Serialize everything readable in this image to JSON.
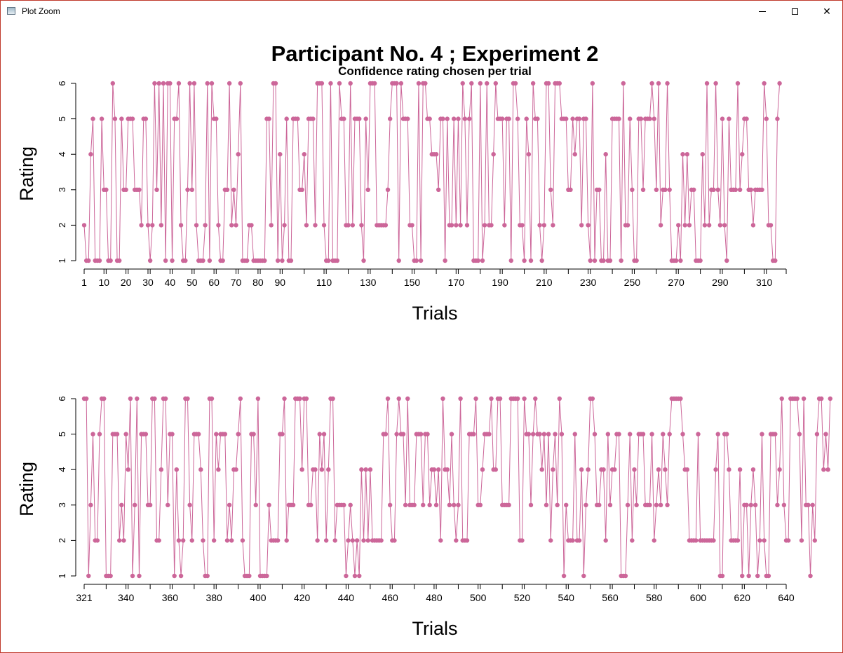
{
  "window": {
    "title": "Plot Zoom",
    "controls": {
      "minimize": "minimize",
      "maximize": "maximize",
      "close": "close"
    }
  },
  "chart_title": "Participant No. 4 ; Experiment 2",
  "chart_subtitle": "Confidence rating chosen per trial",
  "series_color": "#cc6699",
  "chart_data": [
    {
      "type": "line",
      "title": "Participant No. 4 ; Experiment 2",
      "subtitle": "Confidence rating chosen per trial",
      "xlabel": "Trials",
      "ylabel": "Rating",
      "xlim": [
        1,
        320
      ],
      "ylim": [
        1,
        6
      ],
      "x_ticks": [
        1,
        10,
        20,
        30,
        40,
        50,
        60,
        70,
        80,
        90,
        110,
        130,
        150,
        170,
        190,
        210,
        230,
        250,
        270,
        290,
        310
      ],
      "y_ticks": [
        1,
        2,
        3,
        4,
        5,
        6
      ],
      "grid": false,
      "legend": "none",
      "x_start": 1,
      "values": [
        2,
        1,
        1,
        4,
        5,
        1,
        1,
        1,
        5,
        3,
        3,
        1,
        1,
        6,
        5,
        1,
        1,
        5,
        3,
        3,
        5,
        5,
        5,
        3,
        3,
        3,
        2,
        5,
        5,
        2,
        1,
        2,
        6,
        3,
        6,
        2,
        6,
        1,
        6,
        6,
        1,
        5,
        5,
        6,
        2,
        1,
        1,
        3,
        6,
        3,
        6,
        2,
        1,
        1,
        1,
        2,
        6,
        1,
        6,
        5,
        5,
        2,
        1,
        1,
        3,
        3,
        6,
        2,
        3,
        2,
        4,
        6,
        1,
        1,
        1,
        2,
        2,
        1,
        1,
        1,
        1,
        1,
        1,
        5,
        5,
        2,
        6,
        6,
        1,
        4,
        1,
        2,
        5,
        1,
        1,
        5,
        5,
        5,
        3,
        3,
        4,
        2,
        5,
        5,
        5,
        2,
        6,
        6,
        6,
        2,
        1,
        1,
        6,
        1,
        1,
        1,
        6,
        5,
        5,
        2,
        2,
        6,
        2,
        5,
        5,
        5,
        2,
        1,
        5,
        3,
        6,
        6,
        6,
        2,
        2,
        2,
        2,
        2,
        3,
        5,
        6,
        6,
        6,
        1,
        6,
        5,
        5,
        5,
        2,
        2,
        1,
        1,
        6,
        1,
        6,
        6,
        5,
        5,
        4,
        4,
        4,
        3,
        5,
        5,
        1,
        5,
        2,
        2,
        5,
        2,
        5,
        2,
        6,
        5,
        2,
        5,
        6,
        1,
        1,
        1,
        6,
        1,
        2,
        6,
        2,
        2,
        4,
        6,
        5,
        5,
        5,
        2,
        5,
        5,
        1,
        6,
        6,
        5,
        2,
        2,
        1,
        5,
        4,
        1,
        6,
        5,
        5,
        2,
        1,
        2,
        6,
        6,
        3,
        2,
        6,
        6,
        6,
        5,
        5,
        5,
        3,
        3,
        5,
        4,
        5,
        5,
        2,
        5,
        5,
        2,
        1,
        6,
        1,
        3,
        3,
        1,
        1,
        4,
        1,
        1,
        5,
        5,
        5,
        5,
        1,
        6,
        2,
        2,
        5,
        3,
        1,
        1,
        5,
        5,
        3,
        5,
        5,
        5,
        6,
        5,
        3,
        6,
        2,
        3,
        3,
        6,
        3,
        1,
        1,
        1,
        2,
        1,
        4,
        2,
        4,
        2,
        3,
        3,
        1,
        1,
        1,
        4,
        2,
        6,
        2,
        3,
        3,
        6,
        3,
        2,
        5,
        2,
        1,
        5,
        3,
        3,
        3,
        6,
        3,
        4,
        5,
        5,
        3,
        3,
        2,
        3,
        3,
        3,
        3,
        6,
        5,
        2,
        2,
        1,
        1,
        5,
        6
      ]
    },
    {
      "type": "line",
      "xlabel": "Trials",
      "ylabel": "Rating",
      "xlim": [
        321,
        640
      ],
      "ylim": [
        1,
        6
      ],
      "x_ticks": [
        321,
        340,
        360,
        380,
        400,
        420,
        440,
        460,
        480,
        500,
        520,
        540,
        560,
        580,
        600,
        620,
        640
      ],
      "y_ticks": [
        1,
        2,
        3,
        4,
        5,
        6
      ],
      "grid": false,
      "legend": "none",
      "x_start": 321,
      "values": [
        6,
        6,
        1,
        3,
        5,
        2,
        2,
        5,
        6,
        6,
        1,
        1,
        1,
        5,
        5,
        5,
        2,
        3,
        2,
        5,
        4,
        6,
        1,
        3,
        6,
        1,
        5,
        5,
        5,
        3,
        3,
        6,
        6,
        2,
        2,
        4,
        6,
        6,
        3,
        5,
        5,
        1,
        4,
        2,
        1,
        2,
        6,
        6,
        3,
        2,
        5,
        5,
        5,
        4,
        2,
        1,
        1,
        6,
        6,
        2,
        5,
        4,
        5,
        5,
        5,
        2,
        3,
        2,
        4,
        4,
        5,
        6,
        2,
        1,
        1,
        1,
        5,
        5,
        3,
        6,
        1,
        1,
        1,
        1,
        3,
        2,
        2,
        2,
        2,
        5,
        5,
        6,
        2,
        3,
        3,
        3,
        6,
        6,
        6,
        4,
        6,
        6,
        3,
        3,
        4,
        4,
        2,
        5,
        4,
        5,
        2,
        4,
        6,
        6,
        2,
        3,
        3,
        3,
        3,
        1,
        2,
        3,
        2,
        1,
        2,
        1,
        4,
        2,
        4,
        2,
        4,
        2,
        2,
        2,
        2,
        2,
        5,
        5,
        6,
        3,
        2,
        2,
        5,
        6,
        5,
        5,
        3,
        6,
        3,
        3,
        3,
        5,
        5,
        5,
        3,
        5,
        5,
        3,
        4,
        4,
        3,
        4,
        2,
        6,
        4,
        4,
        3,
        5,
        3,
        2,
        3,
        6,
        2,
        2,
        2,
        5,
        5,
        5,
        6,
        3,
        3,
        4,
        5,
        5,
        5,
        6,
        4,
        4,
        6,
        6,
        3,
        3,
        3,
        3,
        6,
        6,
        6,
        6,
        2,
        2,
        6,
        5,
        5,
        3,
        5,
        6,
        5,
        5,
        4,
        5,
        3,
        5,
        2,
        4,
        5,
        3,
        6,
        5,
        1,
        3,
        2,
        2,
        2,
        5,
        2,
        2,
        4,
        1,
        3,
        4,
        6,
        6,
        5,
        3,
        3,
        4,
        4,
        2,
        5,
        3,
        4,
        4,
        5,
        5,
        1,
        1,
        1,
        3,
        5,
        2,
        4,
        3,
        5,
        5,
        5,
        3,
        3,
        3,
        5,
        2,
        3,
        4,
        3,
        5,
        4,
        3,
        5,
        6,
        6,
        6,
        6,
        6,
        5,
        4,
        4,
        2,
        2,
        2,
        2,
        5,
        2,
        2,
        2,
        2,
        2,
        2,
        2,
        4,
        5,
        1,
        1,
        5,
        5,
        4,
        2,
        2,
        2,
        2,
        4,
        1,
        3,
        3,
        1,
        3,
        4,
        3,
        1,
        2,
        5,
        2,
        1,
        1,
        5,
        5,
        5,
        3,
        4,
        6,
        3,
        2,
        2,
        6,
        6,
        6,
        6,
        5,
        2,
        6,
        3,
        3,
        1,
        3,
        2,
        5,
        6,
        6,
        4,
        5,
        4,
        6
      ]
    }
  ]
}
